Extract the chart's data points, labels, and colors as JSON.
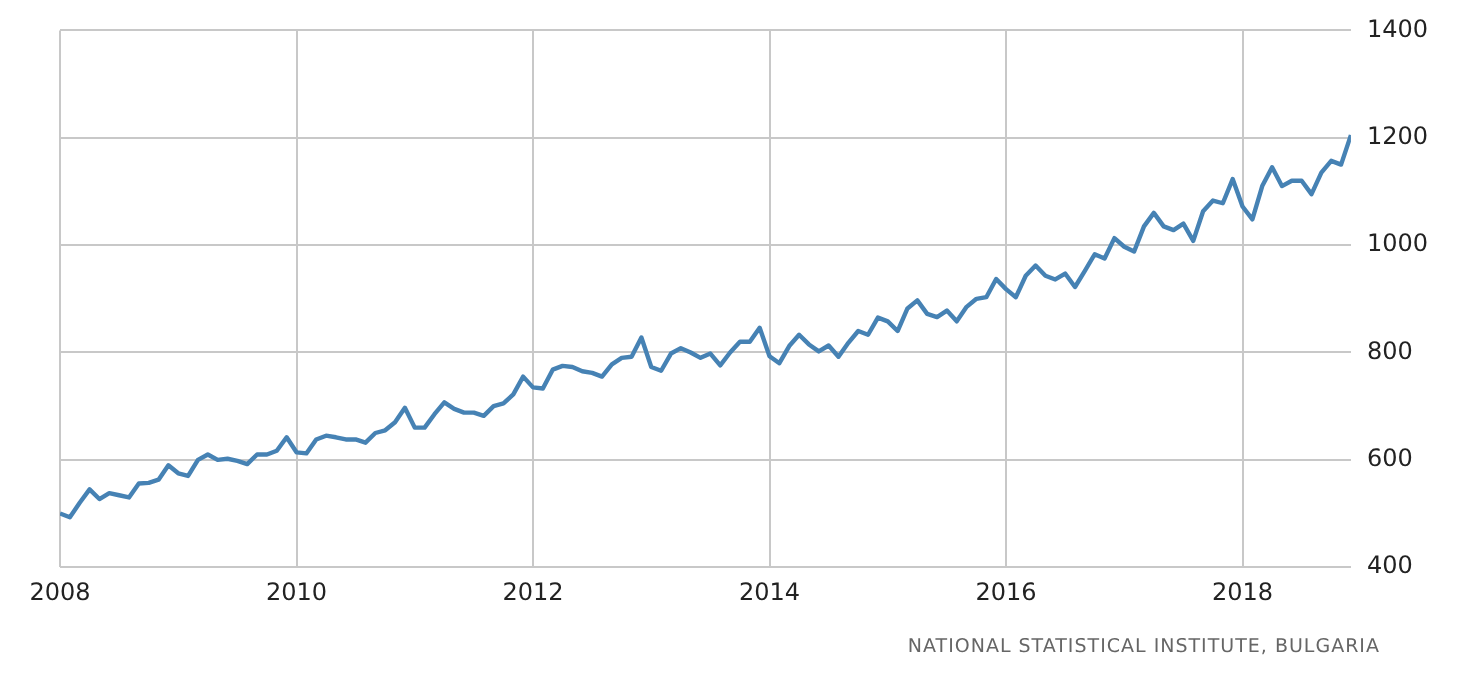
{
  "chart_data": {
    "type": "line",
    "x": [
      "2008-01",
      "2008-02",
      "2008-03",
      "2008-04",
      "2008-05",
      "2008-06",
      "2008-07",
      "2008-08",
      "2008-09",
      "2008-10",
      "2008-11",
      "2008-12",
      "2009-01",
      "2009-02",
      "2009-03",
      "2009-04",
      "2009-05",
      "2009-06",
      "2009-07",
      "2009-08",
      "2009-09",
      "2009-10",
      "2009-11",
      "2009-12",
      "2010-01",
      "2010-02",
      "2010-03",
      "2010-04",
      "2010-05",
      "2010-06",
      "2010-07",
      "2010-08",
      "2010-09",
      "2010-10",
      "2010-11",
      "2010-12",
      "2011-01",
      "2011-02",
      "2011-03",
      "2011-04",
      "2011-05",
      "2011-06",
      "2011-07",
      "2011-08",
      "2011-09",
      "2011-10",
      "2011-11",
      "2011-12",
      "2012-01",
      "2012-02",
      "2012-03",
      "2012-04",
      "2012-05",
      "2012-06",
      "2012-07",
      "2012-08",
      "2012-09",
      "2012-10",
      "2012-11",
      "2012-12",
      "2013-01",
      "2013-02",
      "2013-03",
      "2013-04",
      "2013-05",
      "2013-06",
      "2013-07",
      "2013-08",
      "2013-09",
      "2013-10",
      "2013-11",
      "2013-12",
      "2014-01",
      "2014-02",
      "2014-03",
      "2014-04",
      "2014-05",
      "2014-06",
      "2014-07",
      "2014-08",
      "2014-09",
      "2014-10",
      "2014-11",
      "2014-12",
      "2015-01",
      "2015-02",
      "2015-03",
      "2015-04",
      "2015-05",
      "2015-06",
      "2015-07",
      "2015-08",
      "2015-09",
      "2015-10",
      "2015-11",
      "2015-12",
      "2016-01",
      "2016-02",
      "2016-03",
      "2016-04",
      "2016-05",
      "2016-06",
      "2016-07",
      "2016-08",
      "2016-09",
      "2016-10",
      "2016-11",
      "2016-12",
      "2017-01",
      "2017-02",
      "2017-03",
      "2017-04",
      "2017-05",
      "2017-06",
      "2017-07",
      "2017-08",
      "2017-09",
      "2017-10",
      "2017-11",
      "2017-12",
      "2018-01",
      "2018-02",
      "2018-03",
      "2018-04",
      "2018-05",
      "2018-06",
      "2018-07",
      "2018-08",
      "2018-09",
      "2018-10",
      "2018-11",
      "2018-12"
    ],
    "series": [
      {
        "color": "#4682b4",
        "values": [
          500,
          493,
          520,
          545,
          527,
          538,
          534,
          530,
          556,
          557,
          563,
          590,
          575,
          570,
          600,
          610,
          600,
          602,
          598,
          592,
          610,
          610,
          617,
          642,
          614,
          612,
          638,
          645,
          642,
          638,
          638,
          632,
          650,
          655,
          670,
          697,
          660,
          660,
          685,
          707,
          695,
          688,
          688,
          682,
          700,
          705,
          722,
          755,
          735,
          733,
          768,
          775,
          773,
          765,
          762,
          755,
          778,
          790,
          792,
          828,
          773,
          766,
          798,
          808,
          800,
          790,
          798,
          776,
          800,
          820,
          820,
          846,
          793,
          780,
          812,
          833,
          815,
          802,
          813,
          792,
          818,
          840,
          833,
          865,
          858,
          840,
          882,
          897,
          872,
          866,
          878,
          858,
          885,
          900,
          903,
          937,
          918,
          903,
          943,
          962,
          943,
          936,
          947,
          922,
          952,
          983,
          975,
          1013,
          997,
          988,
          1035,
          1060,
          1035,
          1028,
          1040,
          1008,
          1063,
          1083,
          1078,
          1123,
          1072,
          1048,
          1110,
          1145,
          1110,
          1120,
          1120,
          1095,
          1135,
          1157,
          1150,
          1205
        ]
      }
    ],
    "xlim": [
      "2008-01",
      "2018-12"
    ],
    "xticks": [
      {
        "value": "2008",
        "label": "2008"
      },
      {
        "value": "2010",
        "label": "2010"
      },
      {
        "value": "2012",
        "label": "2012"
      },
      {
        "value": "2014",
        "label": "2014"
      },
      {
        "value": "2016",
        "label": "2016"
      },
      {
        "value": "2018",
        "label": "2018"
      }
    ],
    "ylim": [
      400,
      1400
    ],
    "yticks": [
      400,
      600,
      800,
      1000,
      1200,
      1400
    ],
    "grid": true,
    "legend": false,
    "marker": "none",
    "line_style": "solid",
    "annotations": [
      "NATIONAL STATISTICAL INSTITUTE, BULGARIA"
    ]
  }
}
